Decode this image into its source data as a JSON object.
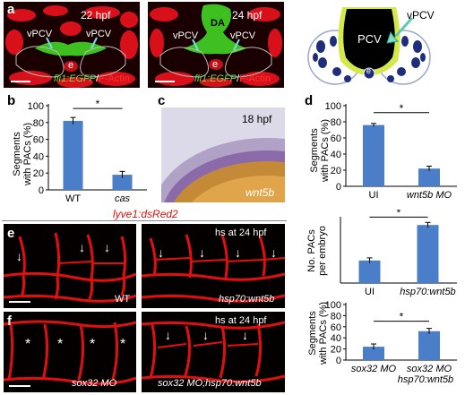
{
  "panel_a": {
    "letter": "a",
    "left": {
      "stage": "22 hpf",
      "vessel_left": "vPCV",
      "vessel_right": "vPCV",
      "tissue": "e",
      "reporter": "fli1:EGFP",
      "separator": "/",
      "stain": "F-Actin"
    },
    "right": {
      "stage": "24 hpf",
      "vessel_top": "DA",
      "vessel_left": "vPCV",
      "vessel_right": "vPCV",
      "tissue": "e",
      "reporter": "fli1:EGFP",
      "separator": "/",
      "stain": "F-Actin"
    },
    "schematic": {
      "vessel_center": "PCV",
      "vessel_arrow": "vPCV",
      "tissue": "e"
    }
  },
  "panel_c": {
    "letter": "c",
    "stage": "18 hpf",
    "probe": "wnt5b"
  },
  "transgene_label": "lyve1:dsRed2",
  "panel_e": {
    "letter": "e",
    "left_condition": "WT",
    "right_condition": "hsp70:wnt5b",
    "heatshock": "hs at 24 hpf"
  },
  "panel_f": {
    "letter": "f",
    "left_condition": "sox32 MO",
    "right_condition": "sox32 MO;hsp70:wnt5b",
    "heatshock": "hs at 24 hpf",
    "marker": "*"
  },
  "chart_data": [
    {
      "id": "b",
      "letter": "b",
      "type": "bar",
      "ylabel_line1": "Segments",
      "ylabel_line2": "with PACs (%)",
      "categories": [
        "WT",
        "cas"
      ],
      "values": [
        82,
        18
      ],
      "errors": [
        4,
        4
      ],
      "ylim": [
        0,
        100
      ],
      "yticks": [
        0,
        20,
        40,
        60,
        80,
        100
      ],
      "significance": "*",
      "bar_color": "#4a7ec9"
    },
    {
      "id": "d",
      "letter": "d",
      "type": "bar",
      "ylabel_line1": "Segments",
      "ylabel_line2": "with PACs (%)",
      "categories": [
        "UI",
        "wnt5b MO"
      ],
      "values": [
        76,
        22
      ],
      "errors": [
        2,
        3
      ],
      "ylim": [
        0,
        100
      ],
      "yticks": [
        0,
        20,
        40,
        60,
        80,
        100
      ],
      "significance": "*",
      "bar_color": "#4a7ec9"
    },
    {
      "id": "e_chart",
      "type": "bar",
      "ylabel_line1": "No. PACs",
      "ylabel_line2": "per embryo",
      "categories": [
        "UI",
        "hsp70:wnt5b"
      ],
      "values": [
        3.5,
        9.0
      ],
      "errors": [
        0.4,
        0.4
      ],
      "ylim": [
        0,
        10
      ],
      "significance": "*",
      "bar_color": "#4a7ec9"
    },
    {
      "id": "f_chart",
      "type": "bar",
      "ylabel_line1": "Segments",
      "ylabel_line2": "with PACs (%)",
      "categories": [
        "sox32 MO",
        "sox32 MO"
      ],
      "category_sublabels": [
        "",
        "hsp70:wnt5b"
      ],
      "values": [
        24,
        52
      ],
      "errors": [
        5,
        5
      ],
      "ylim": [
        0,
        100
      ],
      "yticks": [
        0,
        20,
        40,
        60,
        80,
        100
      ],
      "significance": "*",
      "bar_color": "#4a7ec9"
    }
  ]
}
